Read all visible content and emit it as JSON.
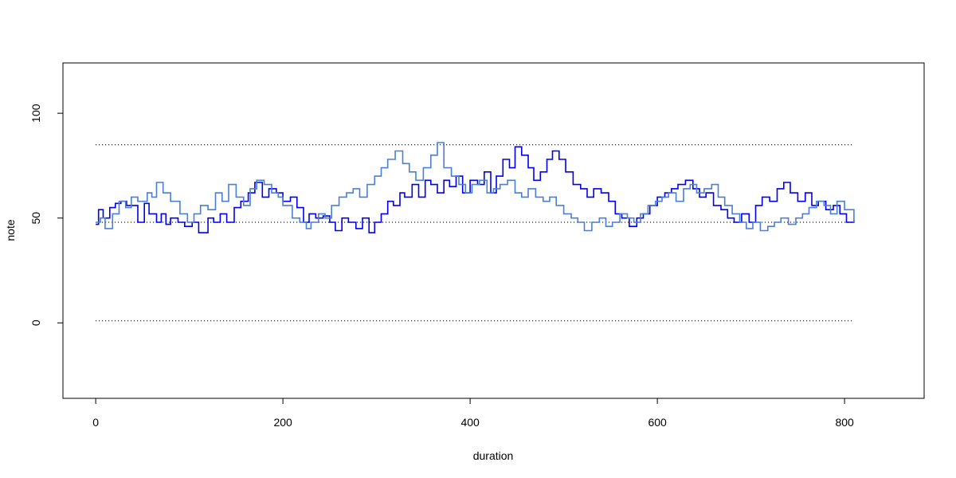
{
  "chart_data": {
    "type": "line",
    "step": true,
    "title": "",
    "xlabel": "duration",
    "ylabel": "note",
    "xlim": [
      -35,
      885
    ],
    "ylim": [
      -36,
      124
    ],
    "xticks": [
      0,
      200,
      400,
      600,
      800
    ],
    "yticks": [
      0,
      50,
      100
    ],
    "grid": false,
    "legend": "none",
    "reference_lines": [
      {
        "y": 85,
        "x": [
          0,
          810
        ],
        "style": "dotted",
        "color": "#000000"
      },
      {
        "y": 48,
        "x": [
          0,
          810
        ],
        "style": "dotted",
        "color": "#000000"
      },
      {
        "y": 1,
        "x": [
          0,
          810
        ],
        "style": "dotted",
        "color": "#000000"
      }
    ],
    "series": [
      {
        "color": "#0000ee",
        "x": [
          0,
          3,
          8,
          15,
          21,
          27,
          33,
          45,
          52,
          57,
          65,
          70,
          75,
          80,
          88,
          95,
          103,
          110,
          120,
          126,
          133,
          140,
          148,
          155,
          163,
          170,
          178,
          185,
          193,
          200,
          208,
          215,
          222,
          228,
          235,
          243,
          250,
          256,
          263,
          270,
          278,
          285,
          292,
          298,
          305,
          312,
          318,
          325,
          330,
          338,
          345,
          352,
          358,
          365,
          372,
          378,
          385,
          392,
          400,
          408,
          415,
          422,
          428,
          435,
          442,
          448,
          455,
          462,
          468,
          475,
          482,
          488,
          495,
          502,
          510,
          518,
          525,
          532,
          540,
          548,
          555,
          562,
          570,
          578,
          585,
          592,
          600,
          608,
          615,
          622,
          630,
          638,
          645,
          652,
          660,
          668,
          675,
          682,
          690,
          698,
          705,
          712,
          720,
          728,
          735,
          742,
          750,
          758,
          765,
          772,
          780,
          788,
          795,
          802,
          810
        ],
        "y": [
          47,
          54,
          50,
          55,
          57,
          58,
          56,
          48,
          57,
          52,
          48,
          52,
          47,
          50,
          48,
          46,
          48,
          43,
          50,
          48,
          52,
          48,
          55,
          58,
          62,
          67,
          60,
          64,
          62,
          58,
          60,
          55,
          48,
          52,
          50,
          51,
          48,
          44,
          50,
          48,
          45,
          50,
          43,
          48,
          52,
          58,
          56,
          62,
          60,
          66,
          60,
          68,
          66,
          62,
          68,
          65,
          70,
          62,
          68,
          66,
          72,
          62,
          70,
          78,
          74,
          84,
          80,
          74,
          68,
          72,
          78,
          82,
          78,
          72,
          66,
          64,
          60,
          64,
          62,
          58,
          52,
          50,
          46,
          50,
          52,
          56,
          60,
          62,
          64,
          66,
          68,
          64,
          60,
          62,
          56,
          54,
          50,
          48,
          52,
          48,
          56,
          60,
          58,
          64,
          67,
          62,
          58,
          62,
          56,
          58,
          54,
          56,
          52,
          48,
          49
        ]
      },
      {
        "color": "#4a7fd4",
        "x": [
          0,
          5,
          10,
          18,
          25,
          32,
          38,
          45,
          55,
          60,
          65,
          72,
          80,
          90,
          98,
          105,
          112,
          120,
          128,
          135,
          142,
          150,
          158,
          165,
          172,
          180,
          188,
          195,
          200,
          210,
          218,
          225,
          230,
          238,
          245,
          252,
          260,
          268,
          275,
          282,
          290,
          298,
          305,
          312,
          320,
          328,
          335,
          342,
          350,
          358,
          365,
          372,
          380,
          388,
          395,
          402,
          410,
          418,
          425,
          432,
          440,
          448,
          455,
          462,
          470,
          478,
          485,
          492,
          500,
          508,
          515,
          522,
          530,
          538,
          545,
          552,
          560,
          568,
          575,
          582,
          590,
          598,
          605,
          612,
          620,
          628,
          635,
          642,
          650,
          658,
          665,
          672,
          680,
          688,
          695,
          702,
          710,
          718,
          725,
          732,
          740,
          748,
          755,
          762,
          770,
          778,
          785,
          792,
          800,
          810
        ],
        "y": [
          48,
          50,
          45,
          52,
          58,
          55,
          60,
          58,
          62,
          60,
          67,
          62,
          58,
          52,
          48,
          52,
          56,
          54,
          62,
          58,
          66,
          60,
          56,
          64,
          68,
          66,
          62,
          60,
          56,
          50,
          48,
          45,
          48,
          52,
          50,
          56,
          60,
          62,
          64,
          60,
          66,
          70,
          74,
          78,
          82,
          76,
          72,
          68,
          74,
          80,
          86,
          74,
          70,
          66,
          62,
          66,
          68,
          62,
          64,
          66,
          68,
          62,
          60,
          64,
          60,
          58,
          60,
          56,
          52,
          50,
          48,
          44,
          48,
          50,
          46,
          48,
          52,
          50,
          48,
          52,
          56,
          58,
          60,
          62,
          58,
          64,
          66,
          62,
          64,
          66,
          60,
          56,
          52,
          48,
          45,
          48,
          44,
          46,
          48,
          50,
          47,
          50,
          52,
          55,
          58,
          56,
          52,
          58,
          54,
          48
        ]
      }
    ]
  }
}
